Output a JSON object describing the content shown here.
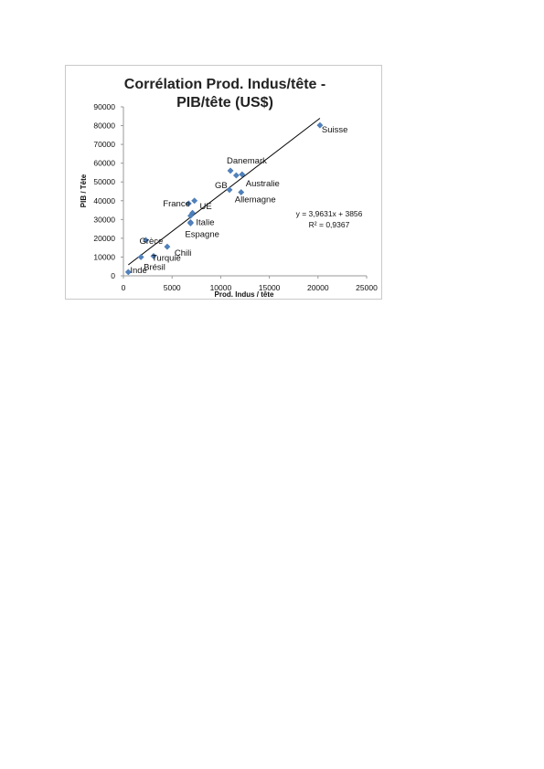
{
  "chart_data": {
    "type": "scatter",
    "title_lines": [
      "Corrélation Prod. Indus/tête -",
      "PIB/tête (US$)"
    ],
    "xlabel": "Prod. Indus / tête",
    "ylabel": "PIB / Tête",
    "xlim": [
      0,
      25000
    ],
    "ylim": [
      0,
      90000
    ],
    "x_ticks": [
      0,
      5000,
      10000,
      15000,
      20000,
      25000
    ],
    "y_ticks": [
      0,
      10000,
      20000,
      30000,
      40000,
      50000,
      60000,
      70000,
      80000,
      90000
    ],
    "points": [
      {
        "label": "Suisse",
        "x": 20200,
        "y": 80200
      },
      {
        "label": "Danemark",
        "x": 11000,
        "y": 56000
      },
      {
        "label": "",
        "x": 11600,
        "y": 53500
      },
      {
        "label": "Australie",
        "x": 12200,
        "y": 54000
      },
      {
        "label": "GB",
        "x": 10900,
        "y": 45800
      },
      {
        "label": "Allemagne",
        "x": 12100,
        "y": 44500
      },
      {
        "label": "",
        "x": 7300,
        "y": 40000
      },
      {
        "label": "France",
        "x": 6700,
        "y": 38500
      },
      {
        "label": "UE",
        "x": 7100,
        "y": 33500
      },
      {
        "label": "",
        "x": 6900,
        "y": 32000
      },
      {
        "label": "Italie",
        "x": 6900,
        "y": 28500
      },
      {
        "label": "Espagne",
        "x": 6900,
        "y": 28000
      },
      {
        "label": "Grèce",
        "x": 2300,
        "y": 19000
      },
      {
        "label": "Chili",
        "x": 4500,
        "y": 15500
      },
      {
        "label": "Turquie",
        "x": 3100,
        "y": 10500
      },
      {
        "label": "Brésil",
        "x": 1800,
        "y": 10000
      },
      {
        "label": "Inde",
        "x": 500,
        "y": 2000
      }
    ],
    "trendline": {
      "slope": 3.9631,
      "intercept": 3856,
      "color": "#000000"
    },
    "equation_lines": [
      "y = 3,9631x + 3856",
      "R² = 0,9367"
    ],
    "marker_color": "#4f81bd",
    "grid": false,
    "legend": "none"
  }
}
